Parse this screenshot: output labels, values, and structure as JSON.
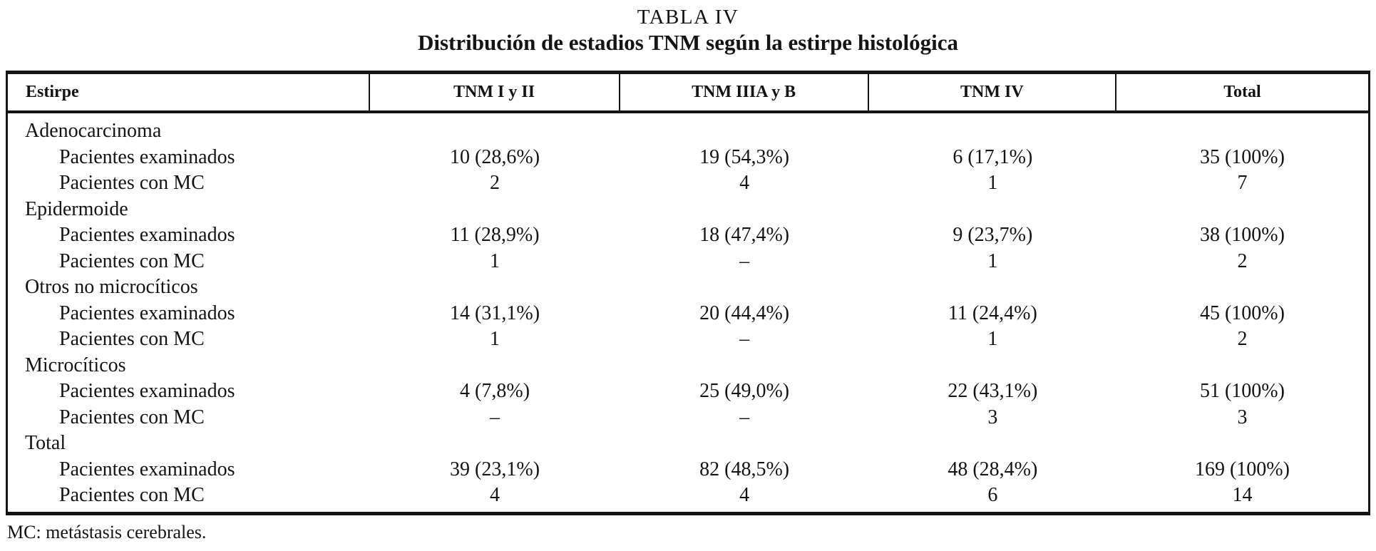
{
  "title": "TABLA IV",
  "subtitle": "Distribución de estadios TNM según la estirpe histológica",
  "footnote": "MC: metástasis cerebrales.",
  "chart_data": {
    "type": "table",
    "columns": [
      "Estirpe",
      "TNM I y II",
      "TNM IIIA y B",
      "TNM IV",
      "Total"
    ],
    "groups": [
      {
        "name": "Adenocarcinoma",
        "rows": [
          {
            "label": "Pacientes examinados",
            "values": [
              "10 (28,6%)",
              "19 (54,3%)",
              "6 (17,1%)",
              "35 (100%)"
            ]
          },
          {
            "label": "Pacientes con MC",
            "values": [
              "2",
              "4",
              "1",
              "7"
            ]
          }
        ]
      },
      {
        "name": "Epidermoide",
        "rows": [
          {
            "label": "Pacientes examinados",
            "values": [
              "11 (28,9%)",
              "18 (47,4%)",
              "9 (23,7%)",
              "38 (100%)"
            ]
          },
          {
            "label": "Pacientes con MC",
            "values": [
              "1",
              "–",
              "1",
              "2"
            ]
          }
        ]
      },
      {
        "name": "Otros no microcíticos",
        "rows": [
          {
            "label": "Pacientes examinados",
            "values": [
              "14 (31,1%)",
              "20 (44,4%)",
              "11 (24,4%)",
              "45 (100%)"
            ]
          },
          {
            "label": "Pacientes con MC",
            "values": [
              "1",
              "–",
              "1",
              "2"
            ]
          }
        ]
      },
      {
        "name": "Microcíticos",
        "rows": [
          {
            "label": "Pacientes examinados",
            "values": [
              "4 (7,8%)",
              "25 (49,0%)",
              "22 (43,1%)",
              "51 (100%)"
            ]
          },
          {
            "label": "Pacientes con MC",
            "values": [
              "–",
              "–",
              "3",
              "3"
            ]
          }
        ]
      },
      {
        "name": "Total",
        "rows": [
          {
            "label": "Pacientes examinados",
            "values": [
              "39 (23,1%)",
              "82 (48,5%)",
              "48 (28,4%)",
              "169 (100%)"
            ]
          },
          {
            "label": "Pacientes con MC",
            "values": [
              "4",
              "4",
              "6",
              "14"
            ]
          }
        ]
      }
    ]
  }
}
